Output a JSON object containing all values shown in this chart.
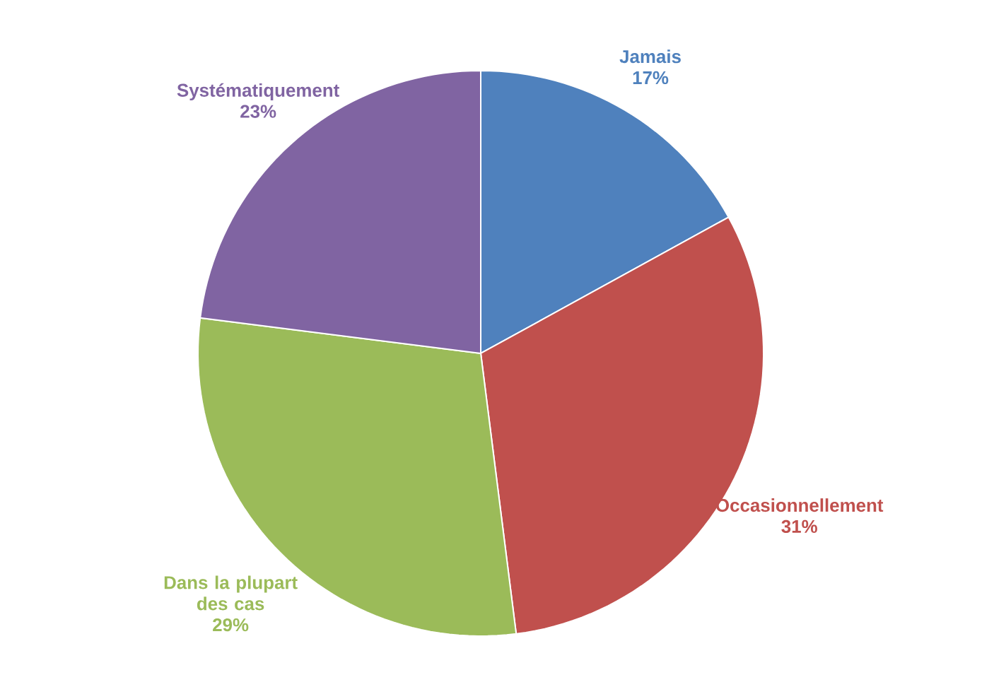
{
  "chart_data": {
    "type": "pie",
    "categories": [
      "Jamais",
      "Occasionnellement",
      "Dans la plupart des cas",
      "Systématiquement"
    ],
    "values": [
      17,
      31,
      29,
      23
    ],
    "value_labels": [
      "17%",
      "31%",
      "29%",
      "23%"
    ],
    "colors": [
      "#4f81bd",
      "#c0504d",
      "#9bbb59",
      "#8064a2"
    ]
  }
}
